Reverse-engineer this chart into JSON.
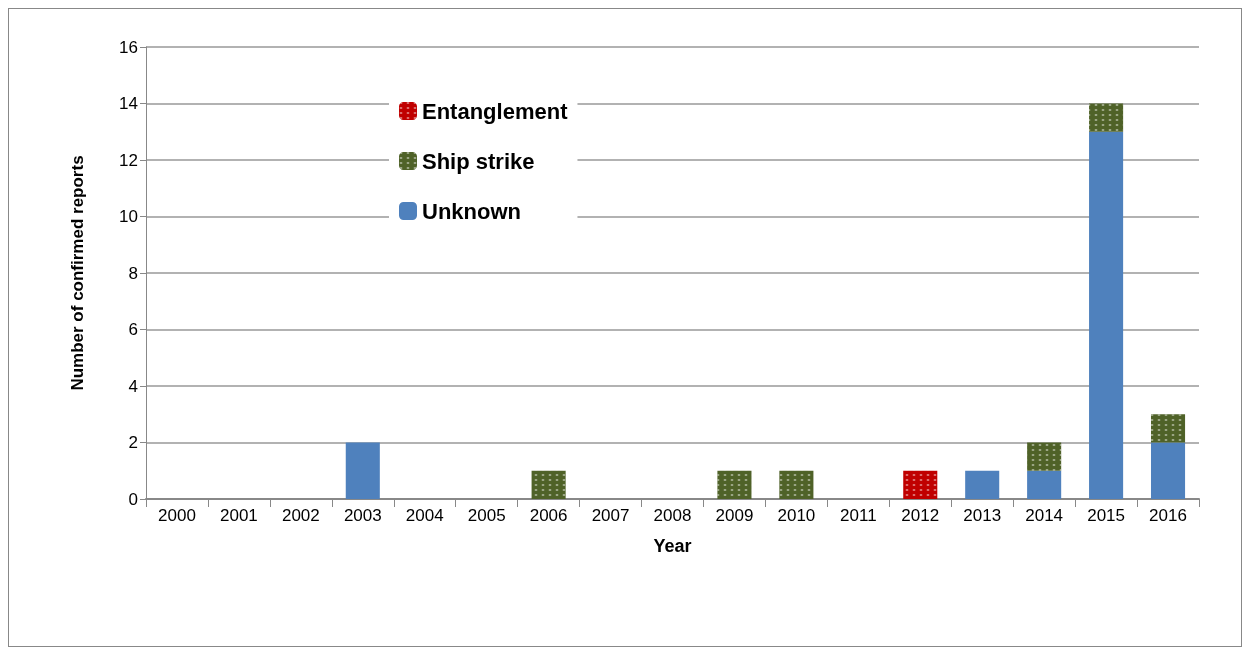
{
  "chart_data": {
    "type": "bar",
    "stacked": true,
    "xlabel": "Year",
    "ylabel": "Number of confirmed reports",
    "categories": [
      "2000",
      "2001",
      "2002",
      "2003",
      "2004",
      "2005",
      "2006",
      "2007",
      "2008",
      "2009",
      "2010",
      "2011",
      "2012",
      "2013",
      "2014",
      "2015",
      "2016"
    ],
    "series": [
      {
        "name": "Unknown",
        "color": "#4f81bd",
        "values": [
          0,
          0,
          0,
          2,
          0,
          0,
          0,
          0,
          0,
          0,
          0,
          0,
          0,
          1,
          1,
          13,
          2
        ]
      },
      {
        "name": "Ship strike",
        "color": "#4f6228",
        "values": [
          0,
          0,
          0,
          0,
          0,
          0,
          1,
          0,
          0,
          1,
          1,
          0,
          0,
          0,
          1,
          1,
          1
        ]
      },
      {
        "name": "Entanglement",
        "color": "#c00000",
        "values": [
          0,
          0,
          0,
          0,
          0,
          0,
          0,
          0,
          0,
          0,
          0,
          0,
          1,
          0,
          0,
          0,
          0
        ]
      }
    ],
    "ylim": [
      0,
      16
    ],
    "yticks": [
      0,
      2,
      4,
      6,
      8,
      10,
      12,
      14,
      16
    ],
    "grid": "y",
    "legend": "top left"
  }
}
